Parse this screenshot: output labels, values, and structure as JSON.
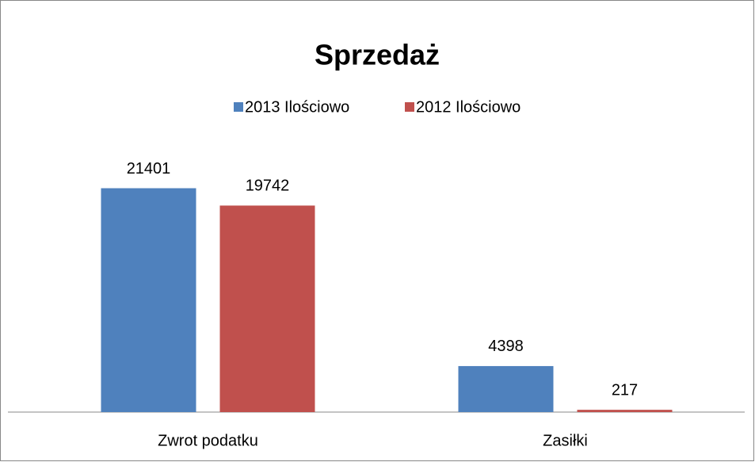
{
  "chart_data": {
    "type": "bar",
    "title": "Sprzedaż",
    "categories": [
      "Zwrot podatku",
      "Zasiłki"
    ],
    "series": [
      {
        "name": "2013 Ilościowo",
        "color": "#4f81bd",
        "values": [
          21401,
          4398
        ]
      },
      {
        "name": "2012 Ilościowo",
        "color": "#c0504d",
        "values": [
          19742,
          217
        ]
      }
    ],
    "ylim": [
      0,
      25000
    ],
    "legend": "top"
  }
}
